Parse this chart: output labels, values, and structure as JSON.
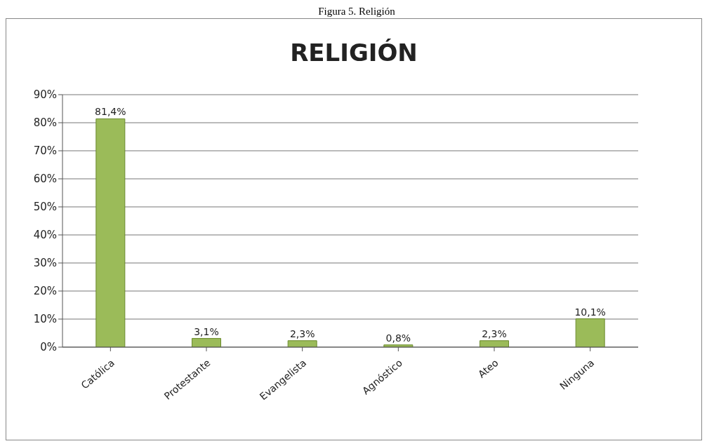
{
  "chart_data": {
    "type": "bar",
    "title": "RELIGIÓN",
    "annotations": [
      "Figura 5. Religión"
    ],
    "categories": [
      "Católica",
      "Protestante",
      "Evangelista",
      "Agnóstico",
      "Ateo",
      "Ninguna"
    ],
    "values": [
      81.4,
      3.1,
      2.3,
      0.8,
      2.3,
      10.1
    ],
    "value_labels": [
      "81,4%",
      "3,1%",
      "2,3%",
      "0,8%",
      "2,3%",
      "10,1%"
    ],
    "color": "#9bbb59",
    "ylim": [
      0,
      90
    ],
    "yticks": [
      {
        "value": 0,
        "label": "0%"
      },
      {
        "value": 10,
        "label": "10%"
      },
      {
        "value": 20,
        "label": "20%"
      },
      {
        "value": 30,
        "label": "30%"
      },
      {
        "value": 40,
        "label": "40%"
      },
      {
        "value": 50,
        "label": "50%"
      },
      {
        "value": 60,
        "label": "60%"
      },
      {
        "value": 70,
        "label": "70%"
      },
      {
        "value": 80,
        "label": "80%"
      },
      {
        "value": 90,
        "label": "90%"
      }
    ],
    "grid": "y",
    "legend": false
  }
}
